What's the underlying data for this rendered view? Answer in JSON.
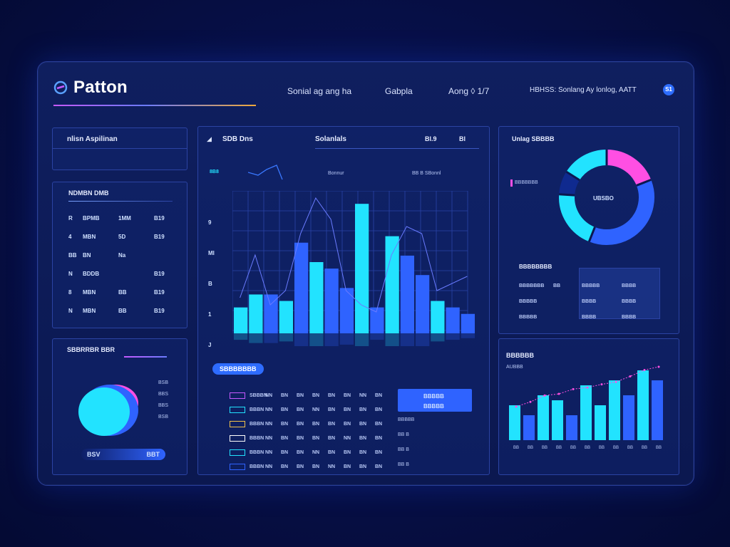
{
  "app": {
    "title": "Patton"
  },
  "nav": {
    "items": [
      "Sonial ag ang ha",
      "Gabpla",
      "Aong ◊ 1/7",
      "HBHSS: Sonlang Ay lonlog, AATT"
    ],
    "badge": "S1"
  },
  "left_top": {
    "title": "nlisn Aspilinan"
  },
  "left_list": {
    "title": "NDMBN DMB",
    "rows": [
      {
        "a": "R",
        "b": "BPMB",
        "c": "1MM",
        "d": "B19"
      },
      {
        "a": "4",
        "b": "MBN",
        "c": "5D",
        "d": "B19"
      },
      {
        "a": "BB",
        "b": "BN",
        "c": "Na",
        "d": ""
      },
      {
        "a": "N",
        "b": "BDDB",
        "c": "",
        "d": "B19"
      },
      {
        "a": "8",
        "b": "MBN",
        "c": "BB",
        "d": "B19"
      },
      {
        "a": "N",
        "b": "MBN",
        "c": "BB",
        "d": "B19"
      }
    ]
  },
  "left_bottom": {
    "title": "SBBRRBR BBR",
    "legend": [
      "BSB",
      "BBS",
      "BBS",
      "BSB"
    ],
    "pill_left": "BSV",
    "pill_right": "BBT"
  },
  "center": {
    "title": "SDB Dns",
    "subtitle": "Solanlals",
    "top_right_a": "Bl.9",
    "top_right_b": "Bl",
    "mini_value": "8B8",
    "mini_label": "Bonnur",
    "mini_legend": "BB B SBonnl",
    "y_ticks": [
      "9",
      "Ml",
      "B",
      "1",
      "J"
    ],
    "pill": "SBBBBBBB",
    "table_rows": [
      [
        "SBBBN",
        "NN",
        "BN",
        "BN",
        "BN",
        "BN",
        "BN",
        "NN",
        "BN"
      ],
      [
        "BBBN",
        "NN",
        "BN",
        "BN",
        "NN",
        "BN",
        "BN",
        "BN",
        "BN"
      ],
      [
        "BBBN",
        "NN",
        "BN",
        "BN",
        "BN",
        "BN",
        "BN",
        "BN",
        "BN"
      ],
      [
        "BBBN",
        "NN",
        "BN",
        "BN",
        "BN",
        "BN",
        "NN",
        "BN",
        "BN"
      ],
      [
        "BBBN",
        "NN",
        "BN",
        "BN",
        "NN",
        "BN",
        "BN",
        "BN",
        "BN"
      ],
      [
        "BBBN",
        "NN",
        "BN",
        "BN",
        "BN",
        "NN",
        "BN",
        "BN",
        "BN"
      ]
    ],
    "side_block_label": "BBBBB",
    "side_block_label2": "BBBBB",
    "side_rows": [
      "BBBBB",
      "BB B",
      "BB B",
      "BB B"
    ]
  },
  "right_top": {
    "title": "Unlag SBBBB",
    "side_label": "BBBBBBB",
    "donut_label": "UBSBO",
    "stats_title": "BBBBBBBB",
    "stats": [
      [
        "BBBBBBB",
        "BB",
        "BBBBB",
        "BBBB"
      ],
      [
        "BBBBB",
        "",
        "BBBB",
        "BBBB"
      ],
      [
        "BBBBB",
        "",
        "BBBB",
        "BBBB"
      ]
    ]
  },
  "right_bottom": {
    "title": "BBBBBB",
    "subtitle": "AUBBB",
    "x_labels": [
      "BB",
      "BB",
      "BB",
      "BB",
      "BB",
      "BB",
      "BB",
      "BB",
      "BB",
      "BB",
      "BB"
    ]
  },
  "colors": {
    "cyan": "#22e3ff",
    "blue": "#2f63ff",
    "pink": "#ff4fe3",
    "accent": "#2e6cff"
  },
  "chart_data": [
    {
      "type": "bar",
      "values": [
        4,
        6,
        6,
        5,
        14,
        11,
        10,
        7,
        20,
        4,
        15,
        12,
        9,
        5,
        4,
        3
      ],
      "line": [
        25,
        55,
        20,
        30,
        70,
        95,
        80,
        30,
        20,
        15,
        55,
        75,
        70,
        30,
        35,
        40
      ]
    },
    {
      "type": "pie",
      "values": [
        19,
        37,
        20,
        8,
        16
      ]
    },
    {
      "type": "bar",
      "values": [
        7,
        5,
        9,
        8,
        5,
        11,
        7,
        12,
        9,
        14,
        12
      ],
      "line": [
        42,
        48,
        56,
        58,
        64,
        66,
        70,
        73,
        80,
        88,
        92
      ]
    }
  ]
}
